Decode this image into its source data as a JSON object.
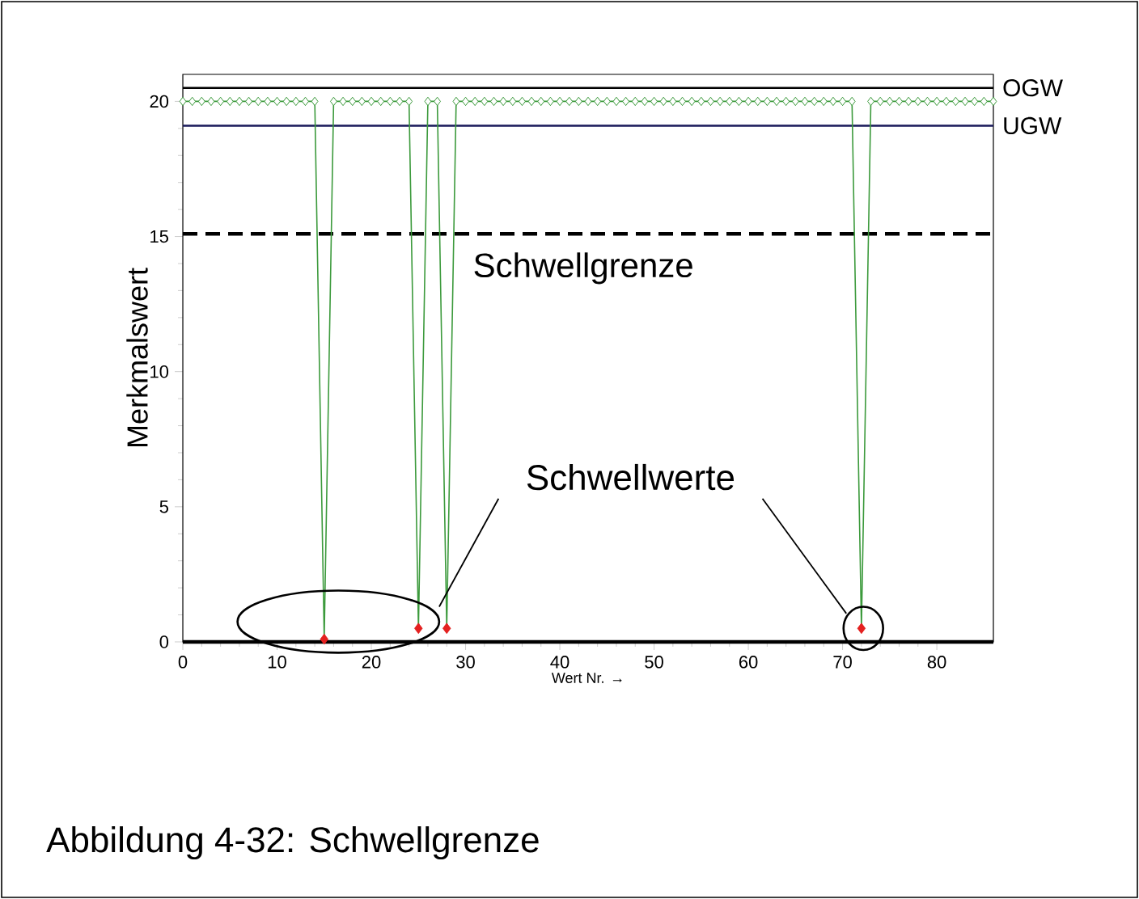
{
  "chart_data": {
    "type": "line",
    "xlabel": "Wert Nr. →",
    "ylabel": "Merkmalswert",
    "xlim": [
      0,
      86
    ],
    "ylim": [
      0,
      21
    ],
    "xticks": [
      0,
      10,
      20,
      30,
      40,
      50,
      60,
      70,
      80
    ],
    "yticks": [
      0,
      5,
      10,
      15,
      20
    ],
    "series": [
      {
        "color": "#3c9a3c",
        "marker": "diamond",
        "x": [
          0,
          1,
          2,
          3,
          4,
          5,
          6,
          7,
          8,
          9,
          10,
          11,
          12,
          13,
          14,
          15,
          16,
          17,
          18,
          19,
          20,
          21,
          22,
          23,
          24,
          25,
          26,
          27,
          28,
          29,
          30,
          31,
          32,
          33,
          34,
          35,
          36,
          37,
          38,
          39,
          40,
          41,
          42,
          43,
          44,
          45,
          46,
          47,
          48,
          49,
          50,
          51,
          52,
          53,
          54,
          55,
          56,
          57,
          58,
          59,
          60,
          61,
          62,
          63,
          64,
          65,
          66,
          67,
          68,
          69,
          70,
          71,
          72,
          73,
          74,
          75,
          76,
          77,
          78,
          79,
          80,
          81,
          82,
          83,
          84,
          85,
          86
        ],
        "values": [
          20,
          20,
          20,
          20,
          20,
          20,
          20,
          20,
          20,
          20,
          20,
          20,
          20,
          20,
          20,
          0.1,
          20,
          20,
          20,
          20,
          20,
          20,
          20,
          20,
          20,
          0.5,
          20,
          20,
          0.5,
          20,
          20,
          20,
          20,
          20,
          20,
          20,
          20,
          20,
          20,
          20,
          20,
          20,
          20,
          20,
          20,
          20,
          20,
          20,
          20,
          20,
          20,
          20,
          20,
          20,
          20,
          20,
          20,
          20,
          20,
          20,
          20,
          20,
          20,
          20,
          20,
          20,
          20,
          20,
          20,
          20,
          20,
          20,
          0.5,
          20,
          20,
          20,
          20,
          20,
          20,
          20,
          20,
          20,
          20,
          20,
          20,
          20,
          20
        ]
      },
      {
        "type": "scatter",
        "color": "#e52020",
        "marker": "diamond",
        "x": [
          15,
          25,
          28,
          72
        ],
        "values": [
          0.1,
          0.5,
          0.5,
          0.5
        ]
      }
    ],
    "ref_lines": [
      {
        "axis": "y",
        "value": 20.5,
        "label": "OGW",
        "color": "#000000",
        "line_style": "solid"
      },
      {
        "axis": "y",
        "value": 19.1,
        "label": "UGW",
        "color": "#1a1a5a",
        "line_style": "solid"
      },
      {
        "axis": "y",
        "value": 15.1,
        "label": "Schwellgrenze",
        "color": "#000000",
        "line_style": "dashed"
      }
    ],
    "annotations": [
      "Schwellwerte",
      "Abbildung 4-32: Schwellgrenze"
    ]
  }
}
